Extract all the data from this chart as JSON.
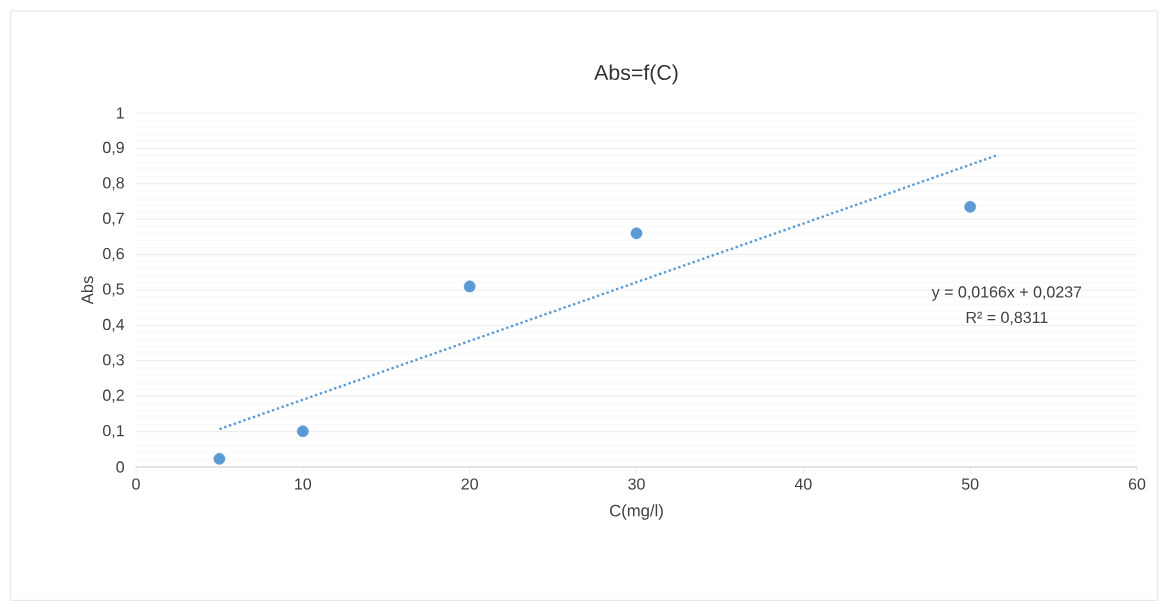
{
  "chart_data": {
    "type": "scatter",
    "title": "Abs=f(C)",
    "xlabel": "C(mg/l)",
    "ylabel": "Abs",
    "series": [
      {
        "type": "scatter",
        "color": "#5b9bd5",
        "marker": "circle",
        "x": [
          5,
          10,
          20,
          30,
          50
        ],
        "values": [
          0.023,
          0.101,
          0.51,
          0.66,
          0.735
        ]
      },
      {
        "type": "line",
        "color": "#5b9bd5",
        "line_style": "dotted",
        "marker": "none",
        "x": [
          5,
          51.7
        ],
        "values": [
          0.107,
          0.882
        ]
      }
    ],
    "xlim": [
      0,
      60
    ],
    "xticks": [
      0,
      10,
      20,
      30,
      40,
      50,
      60
    ],
    "ylim": [
      0,
      1
    ],
    "yticks": [
      0,
      {
        "value": 0.1,
        "label": "0,1"
      },
      {
        "value": 0.2,
        "label": "0,2"
      },
      {
        "value": 0.3,
        "label": "0,3"
      },
      {
        "value": 0.4,
        "label": "0,4"
      },
      {
        "value": 0.5,
        "label": "0,5"
      },
      {
        "value": 0.6,
        "label": "0,6"
      },
      {
        "value": 0.7,
        "label": "0,7"
      },
      {
        "value": 0.8,
        "label": "0,8"
      },
      {
        "value": 0.9,
        "label": "0,9"
      },
      1
    ],
    "grid": "y",
    "annotations": [
      "y = 0,0166x + 0,0237",
      "R² = 0,8311"
    ]
  }
}
